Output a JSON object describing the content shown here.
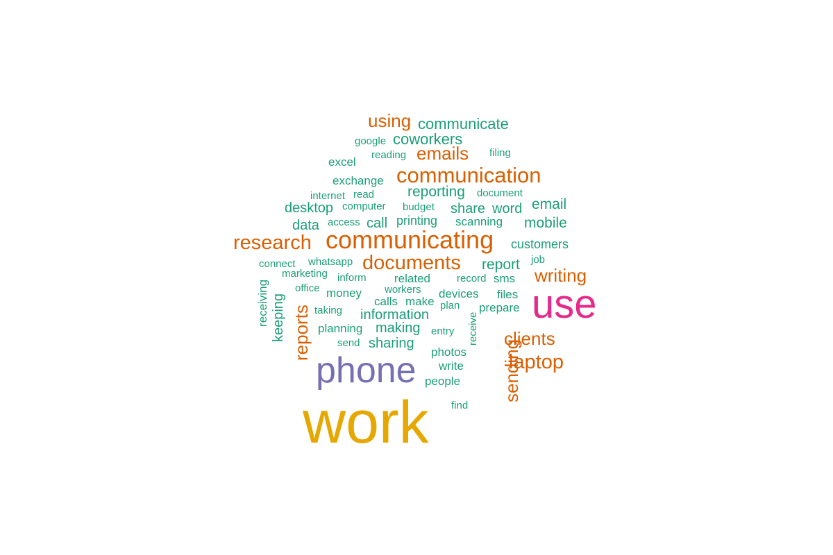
{
  "colors": {
    "work": "#E6A800",
    "phone": "#7570B3",
    "use": "#E7298A",
    "orange": "#D95F02",
    "green": "#1B9E77"
  },
  "words": [
    {
      "id": "work",
      "text": "work"
    },
    {
      "id": "phone",
      "text": "phone"
    },
    {
      "id": "use",
      "text": "use"
    },
    {
      "id": "communicating",
      "text": "communicating"
    },
    {
      "id": "communication",
      "text": "communication"
    },
    {
      "id": "documents",
      "text": "documents"
    },
    {
      "id": "research",
      "text": "research"
    },
    {
      "id": "laptop",
      "text": "laptop"
    },
    {
      "id": "sending",
      "text": "sending"
    },
    {
      "id": "reports",
      "text": "reports"
    },
    {
      "id": "clients",
      "text": "clients"
    },
    {
      "id": "writing",
      "text": "writing"
    },
    {
      "id": "emails",
      "text": "emails"
    },
    {
      "id": "using",
      "text": "using"
    },
    {
      "id": "communicate",
      "text": "communicate"
    },
    {
      "id": "coworkers",
      "text": "coworkers"
    },
    {
      "id": "email",
      "text": "email"
    },
    {
      "id": "mobile",
      "text": "mobile"
    },
    {
      "id": "report",
      "text": "report"
    },
    {
      "id": "reporting",
      "text": "reporting"
    },
    {
      "id": "information",
      "text": "information"
    },
    {
      "id": "sharing",
      "text": "sharing"
    },
    {
      "id": "making",
      "text": "making"
    },
    {
      "id": "share",
      "text": "share"
    },
    {
      "id": "word",
      "text": "word"
    },
    {
      "id": "desktop",
      "text": "desktop"
    },
    {
      "id": "data",
      "text": "data"
    },
    {
      "id": "customers",
      "text": "customers"
    },
    {
      "id": "call",
      "text": "call"
    },
    {
      "id": "printing",
      "text": "printing"
    },
    {
      "id": "keeping",
      "text": "keeping"
    },
    {
      "id": "receiving",
      "text": "receiving"
    },
    {
      "id": "exchange",
      "text": "exchange"
    },
    {
      "id": "excel",
      "text": "excel"
    },
    {
      "id": "google",
      "text": "google"
    },
    {
      "id": "reading",
      "text": "reading"
    },
    {
      "id": "filing",
      "text": "filing"
    },
    {
      "id": "internet",
      "text": "internet"
    },
    {
      "id": "read",
      "text": "read"
    },
    {
      "id": "document",
      "text": "document"
    },
    {
      "id": "computer",
      "text": "computer"
    },
    {
      "id": "budget",
      "text": "budget"
    },
    {
      "id": "access",
      "text": "access"
    },
    {
      "id": "scanning",
      "text": "scanning"
    },
    {
      "id": "connect",
      "text": "connect"
    },
    {
      "id": "whatsapp",
      "text": "whatsapp"
    },
    {
      "id": "job",
      "text": "job"
    },
    {
      "id": "marketing",
      "text": "marketing"
    },
    {
      "id": "inform",
      "text": "inform"
    },
    {
      "id": "related",
      "text": "related"
    },
    {
      "id": "record",
      "text": "record"
    },
    {
      "id": "sms",
      "text": "sms"
    },
    {
      "id": "office",
      "text": "office"
    },
    {
      "id": "money",
      "text": "money"
    },
    {
      "id": "workers",
      "text": "workers"
    },
    {
      "id": "devices",
      "text": "devices"
    },
    {
      "id": "files",
      "text": "files"
    },
    {
      "id": "calls",
      "text": "calls"
    },
    {
      "id": "make",
      "text": "make"
    },
    {
      "id": "plan",
      "text": "plan"
    },
    {
      "id": "prepare",
      "text": "prepare"
    },
    {
      "id": "taking",
      "text": "taking"
    },
    {
      "id": "receive",
      "text": "receive"
    },
    {
      "id": "planning",
      "text": "planning"
    },
    {
      "id": "entry",
      "text": "entry"
    },
    {
      "id": "send",
      "text": "send"
    },
    {
      "id": "photos",
      "text": "photos"
    },
    {
      "id": "write",
      "text": "write"
    },
    {
      "id": "people",
      "text": "people"
    },
    {
      "id": "find",
      "text": "find"
    }
  ]
}
